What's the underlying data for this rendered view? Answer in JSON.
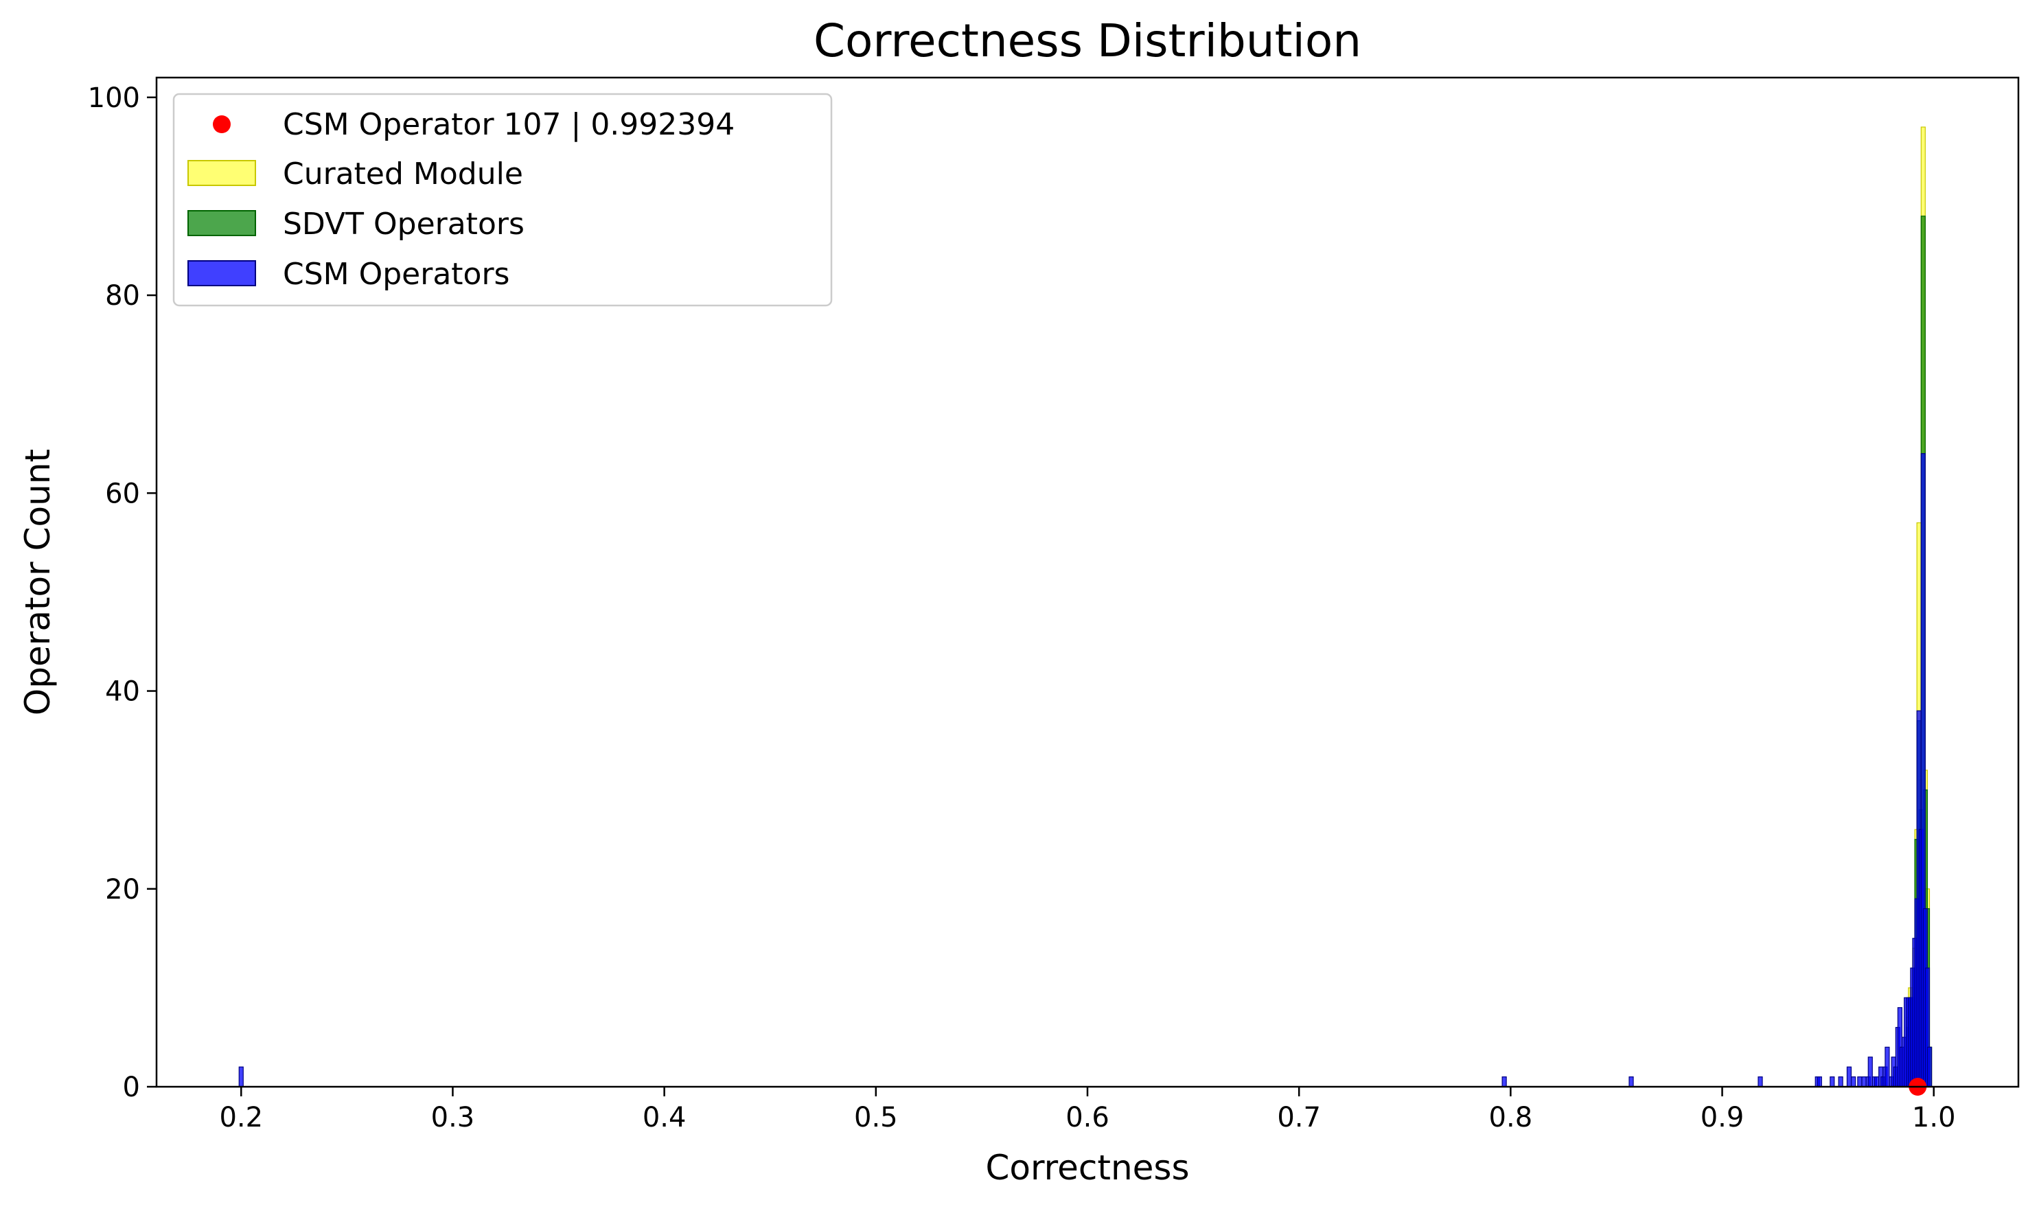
{
  "chart_data": {
    "type": "bar",
    "title": "Correctness Distribution",
    "xlabel": "Correctness",
    "ylabel": "Operator Count",
    "xlim": [
      0.16,
      1.04
    ],
    "ylim": [
      0,
      102
    ],
    "xticks": [
      0.2,
      0.3,
      0.4,
      0.5,
      0.6,
      0.7,
      0.8,
      0.9,
      1.0
    ],
    "xtick_labels": [
      "0.2",
      "0.3",
      "0.4",
      "0.5",
      "0.6",
      "0.7",
      "0.8",
      "0.9",
      "1.0"
    ],
    "yticks": [
      0,
      20,
      40,
      60,
      80,
      100
    ],
    "ytick_labels": [
      "0",
      "20",
      "40",
      "60",
      "80",
      "100"
    ],
    "grid": false,
    "legend_placement": "top-left",
    "bin_width": 0.001,
    "series": [
      {
        "name": "Curated Module",
        "color": "#ffff00",
        "edge_color": "#c8c800",
        "x": [
          0.988,
          0.989,
          0.99,
          0.991,
          0.992,
          0.993,
          0.994,
          0.995,
          0.996,
          0.997,
          0.998
        ],
        "values": [
          7,
          10,
          10,
          14,
          26,
          57,
          31,
          97,
          32,
          20,
          4
        ]
      },
      {
        "name": "SDVT Operators",
        "color": "#008000",
        "edge_color": "#006400",
        "x": [
          0.988,
          0.989,
          0.99,
          0.991,
          0.992,
          0.993,
          0.994,
          0.995,
          0.996,
          0.997,
          0.998
        ],
        "values": [
          6,
          9,
          9,
          12,
          25,
          37,
          28,
          88,
          30,
          18,
          4
        ]
      },
      {
        "name": "CSM Operators",
        "color": "#0000ff",
        "edge_color": "#000080",
        "x": [
          0.2,
          0.797,
          0.857,
          0.918,
          0.945,
          0.946,
          0.952,
          0.956,
          0.96,
          0.962,
          0.965,
          0.967,
          0.969,
          0.97,
          0.972,
          0.973,
          0.975,
          0.976,
          0.977,
          0.978,
          0.98,
          0.981,
          0.982,
          0.983,
          0.984,
          0.985,
          0.986,
          0.987,
          0.988,
          0.989,
          0.99,
          0.991,
          0.992,
          0.993,
          0.994,
          0.995,
          0.996,
          0.997,
          0.998
        ],
        "values": [
          2,
          1,
          1,
          1,
          1,
          1,
          1,
          1,
          2,
          1,
          1,
          1,
          1,
          3,
          1,
          1,
          2,
          1,
          2,
          4,
          1,
          3,
          2,
          6,
          8,
          4,
          5,
          9,
          9,
          9,
          12,
          15,
          19,
          38,
          26,
          64,
          18,
          12,
          4
        ]
      }
    ],
    "highlight": {
      "name": "CSM Operator 107",
      "label": "CSM Operator 107  |  0.992394",
      "x": 0.992394,
      "y": 0,
      "color": "#ff0000"
    }
  }
}
